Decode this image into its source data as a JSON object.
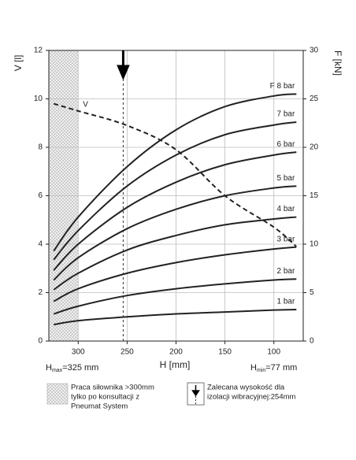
{
  "chart_data": {
    "type": "line",
    "xlabel": "H [mm]",
    "ylabel": "V [l]",
    "y2label": "F [kN]",
    "x": [
      325,
      300,
      250,
      200,
      150,
      100,
      77
    ],
    "xlim": [
      330,
      70
    ],
    "xticks": [
      300,
      250,
      200,
      150,
      100
    ],
    "ylim": [
      0,
      12
    ],
    "yticks": [
      0,
      2,
      4,
      6,
      8,
      10,
      12
    ],
    "y2lim": [
      0,
      30
    ],
    "y2ticks": [
      0,
      5,
      10,
      15,
      20,
      25,
      30
    ],
    "grid": true,
    "restricted_above": 300,
    "recommended_height": 254,
    "series": [
      {
        "name": "V",
        "color": "#222222",
        "dashed": true,
        "axis": "y",
        "values": [
          9.8,
          9.5,
          8.9,
          7.9,
          6.0,
          4.7,
          3.9
        ]
      },
      {
        "name": "1 bar",
        "color": "#222222",
        "axis": "y2",
        "values": [
          1.7,
          2.1,
          2.5,
          2.8,
          3.0,
          3.2,
          3.25
        ]
      },
      {
        "name": "2 bar",
        "color": "#222222",
        "axis": "y2",
        "values": [
          2.8,
          3.6,
          4.7,
          5.4,
          5.9,
          6.3,
          6.4
        ]
      },
      {
        "name": "3 bar",
        "color": "#222222",
        "axis": "y2",
        "values": [
          4.1,
          5.4,
          7.0,
          8.1,
          8.9,
          9.5,
          9.7
        ]
      },
      {
        "name": "4 bar",
        "color": "#222222",
        "axis": "y2",
        "values": [
          5.3,
          7.0,
          9.4,
          10.9,
          12.0,
          12.6,
          12.8
        ]
      },
      {
        "name": "5 bar",
        "color": "#222222",
        "axis": "y2",
        "values": [
          6.3,
          8.6,
          11.6,
          13.6,
          15.0,
          15.8,
          16.0
        ]
      },
      {
        "name": "6 bar",
        "color": "#222222",
        "axis": "y2",
        "values": [
          7.3,
          10.0,
          13.8,
          16.4,
          18.2,
          19.2,
          19.5
        ]
      },
      {
        "name": "7 bar",
        "color": "#222222",
        "axis": "y2",
        "values": [
          8.4,
          11.4,
          16.0,
          19.2,
          21.3,
          22.3,
          22.6
        ]
      },
      {
        "name": "F 8 bar",
        "color": "#222222",
        "axis": "y2",
        "values": [
          9.3,
          12.8,
          18.0,
          21.8,
          24.2,
          25.3,
          25.5
        ]
      }
    ],
    "annotations": {
      "hmax": {
        "base": "H",
        "sub": "max",
        "rest": "=325 mm"
      },
      "hmin": {
        "base": "H",
        "sub": "min",
        "rest": "=77 mm"
      }
    },
    "legend": {
      "restricted": [
        "Praca siłownika >300mm",
        "tylko po konsultacji z",
        "Pneumat System"
      ],
      "recommended": [
        "Zalecana wysokość dla",
        "izolacji wibracyjnej:254mm"
      ]
    }
  }
}
